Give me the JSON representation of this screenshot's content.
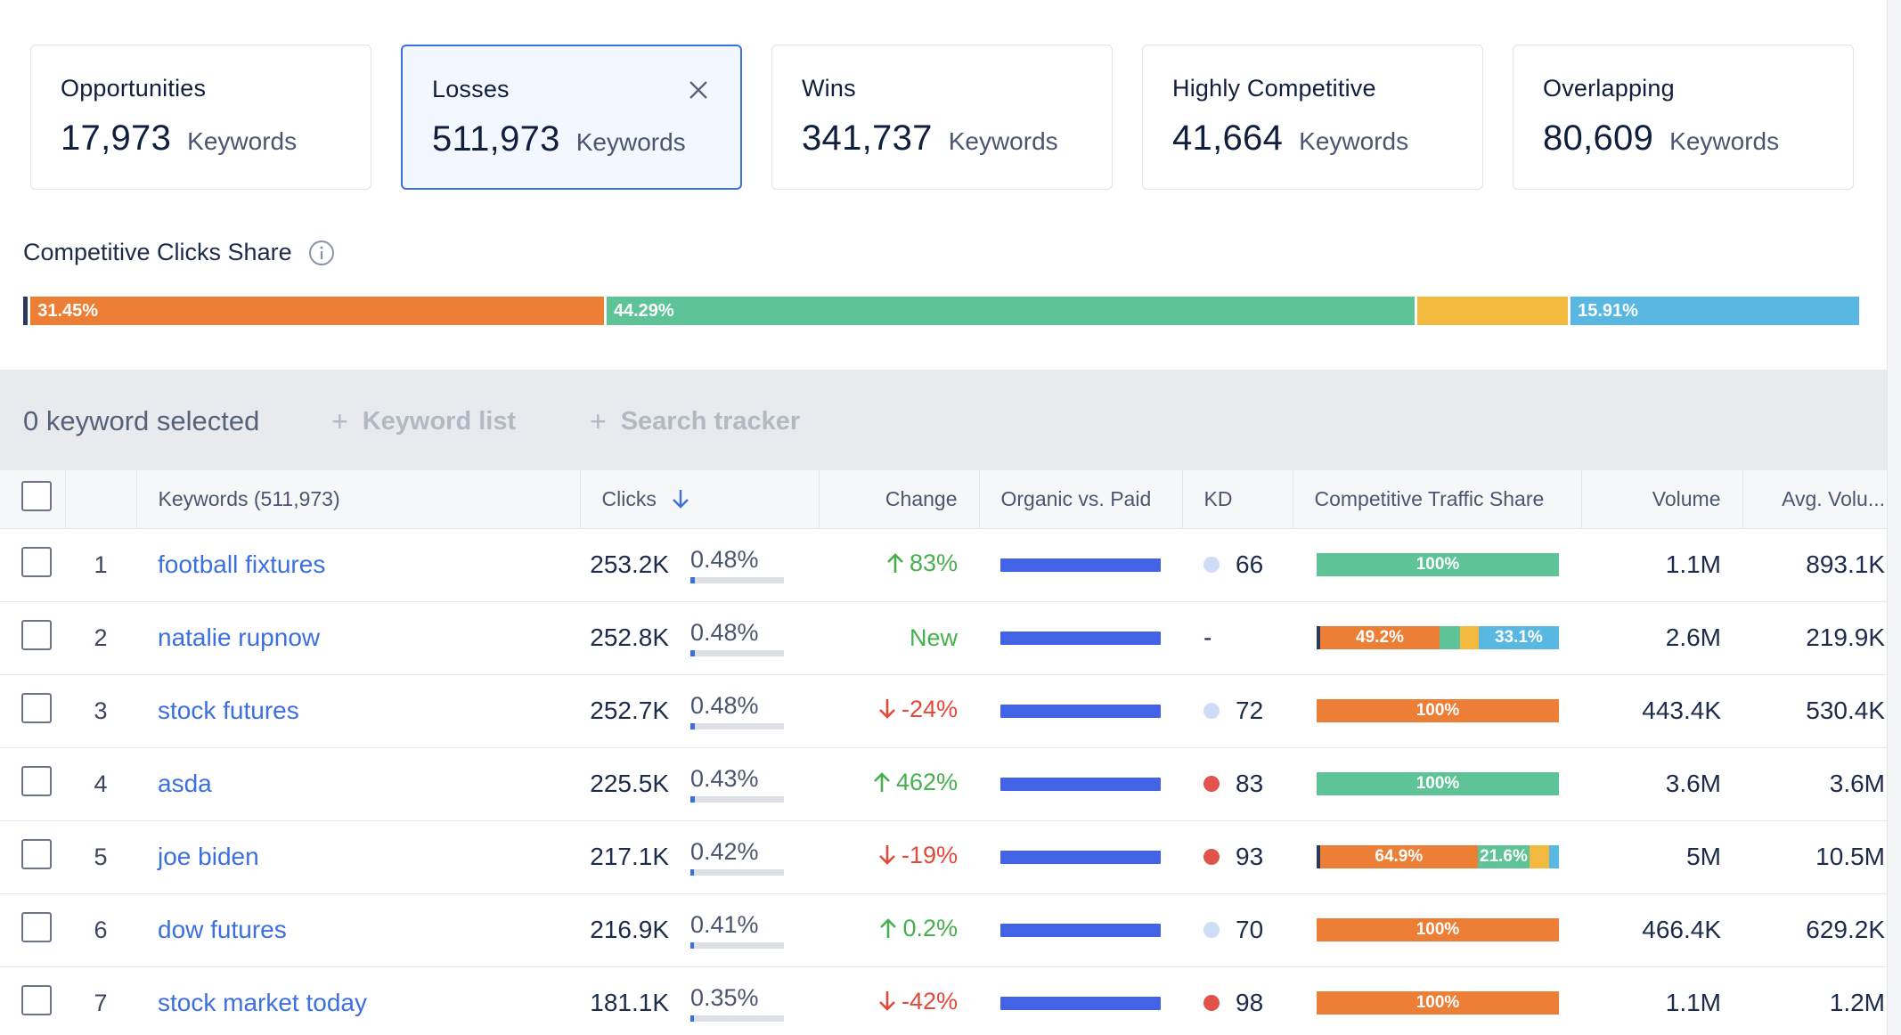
{
  "cards": [
    {
      "title": "Opportunities",
      "value": "17,973",
      "unit": "Keywords",
      "active": false
    },
    {
      "title": "Losses",
      "value": "511,973",
      "unit": "Keywords",
      "active": true
    },
    {
      "title": "Wins",
      "value": "341,737",
      "unit": "Keywords",
      "active": false
    },
    {
      "title": "Highly Competitive",
      "value": "41,664",
      "unit": "Keywords",
      "active": false
    },
    {
      "title": "Overlapping",
      "value": "80,609",
      "unit": "Keywords",
      "active": false
    }
  ],
  "share": {
    "title": "Competitive Clicks Share",
    "segments": [
      {
        "label": "",
        "fraction": 0.004,
        "color": "#2b3a5c"
      },
      {
        "label": "31.45%",
        "fraction": 0.3145,
        "color": "#ec7f35"
      },
      {
        "label": "44.29%",
        "fraction": 0.4429,
        "color": "#5ec497"
      },
      {
        "label": "",
        "fraction": 0.0835,
        "color": "#f3b83e"
      },
      {
        "label": "15.91%",
        "fraction": 0.1591,
        "color": "#58b8e2"
      }
    ]
  },
  "toolbar": {
    "selected": "0 keyword selected",
    "keyword_list": "Keyword list",
    "search_tracker": "Search tracker"
  },
  "columns": {
    "keywords": "Keywords (511,973)",
    "clicks": "Clicks",
    "change": "Change",
    "organic_paid": "Organic vs. Paid",
    "kd": "KD",
    "cts": "Competitive Traffic Share",
    "volume": "Volume",
    "avg_volume": "Avg. Volu..."
  },
  "colors": {
    "orange": "#ec7f35",
    "green": "#5ec497",
    "yellow": "#f3b83e",
    "blue": "#58b8e2",
    "navy": "#2b3a5c",
    "kd_light": "#cfdcf7",
    "kd_red": "#e05449"
  },
  "rows": [
    {
      "n": "1",
      "keyword": "football fixtures",
      "clicks": "253.2K",
      "pct": "0.48%",
      "pct_frac": 0.048,
      "change": "83%",
      "dir": "up",
      "kd": "66",
      "kd_color": "#cfdcf7",
      "cts": [
        {
          "label": "100%",
          "fraction": 1.0,
          "color": "#5ec497"
        }
      ],
      "volume": "1.1M",
      "avg": "893.1K"
    },
    {
      "n": "2",
      "keyword": "natalie rupnow",
      "clicks": "252.8K",
      "pct": "0.48%",
      "pct_frac": 0.048,
      "change": "New",
      "dir": "new",
      "kd": "-",
      "kd_color": "",
      "cts": [
        {
          "label": "",
          "fraction": 0.015,
          "color": "#2b3a5c"
        },
        {
          "label": "49.2%",
          "fraction": 0.492,
          "color": "#ec7f35"
        },
        {
          "label": "",
          "fraction": 0.085,
          "color": "#5ec497"
        },
        {
          "label": "",
          "fraction": 0.077,
          "color": "#f3b83e"
        },
        {
          "label": "33.1%",
          "fraction": 0.331,
          "color": "#58b8e2"
        }
      ],
      "volume": "2.6M",
      "avg": "219.9K"
    },
    {
      "n": "3",
      "keyword": "stock futures",
      "clicks": "252.7K",
      "pct": "0.48%",
      "pct_frac": 0.048,
      "change": "-24%",
      "dir": "down",
      "kd": "72",
      "kd_color": "#cfdcf7",
      "cts": [
        {
          "label": "100%",
          "fraction": 1.0,
          "color": "#ec7f35"
        }
      ],
      "volume": "443.4K",
      "avg": "530.4K"
    },
    {
      "n": "4",
      "keyword": "asda",
      "clicks": "225.5K",
      "pct": "0.43%",
      "pct_frac": 0.043,
      "change": "462%",
      "dir": "up",
      "kd": "83",
      "kd_color": "#e05449",
      "cts": [
        {
          "label": "100%",
          "fraction": 1.0,
          "color": "#5ec497"
        }
      ],
      "volume": "3.6M",
      "avg": "3.6M"
    },
    {
      "n": "5",
      "keyword": "joe biden",
      "clicks": "217.1K",
      "pct": "0.42%",
      "pct_frac": 0.042,
      "change": "-19%",
      "dir": "down",
      "kd": "93",
      "kd_color": "#e05449",
      "cts": [
        {
          "label": "",
          "fraction": 0.015,
          "color": "#2b3a5c"
        },
        {
          "label": "64.9%",
          "fraction": 0.649,
          "color": "#ec7f35"
        },
        {
          "label": "21.6%",
          "fraction": 0.216,
          "color": "#5ec497"
        },
        {
          "label": "",
          "fraction": 0.08,
          "color": "#f3b83e"
        },
        {
          "label": "",
          "fraction": 0.04,
          "color": "#58b8e2"
        }
      ],
      "volume": "5M",
      "avg": "10.5M"
    },
    {
      "n": "6",
      "keyword": "dow futures",
      "clicks": "216.9K",
      "pct": "0.41%",
      "pct_frac": 0.041,
      "change": "0.2%",
      "dir": "up",
      "kd": "70",
      "kd_color": "#cfdcf7",
      "cts": [
        {
          "label": "100%",
          "fraction": 1.0,
          "color": "#ec7f35"
        }
      ],
      "volume": "466.4K",
      "avg": "629.2K"
    },
    {
      "n": "7",
      "keyword": "stock market today",
      "clicks": "181.1K",
      "pct": "0.35%",
      "pct_frac": 0.035,
      "change": "-42%",
      "dir": "down",
      "kd": "98",
      "kd_color": "#e05449",
      "cts": [
        {
          "label": "100%",
          "fraction": 1.0,
          "color": "#ec7f35"
        }
      ],
      "volume": "1.1M",
      "avg": "1.2M"
    }
  ]
}
